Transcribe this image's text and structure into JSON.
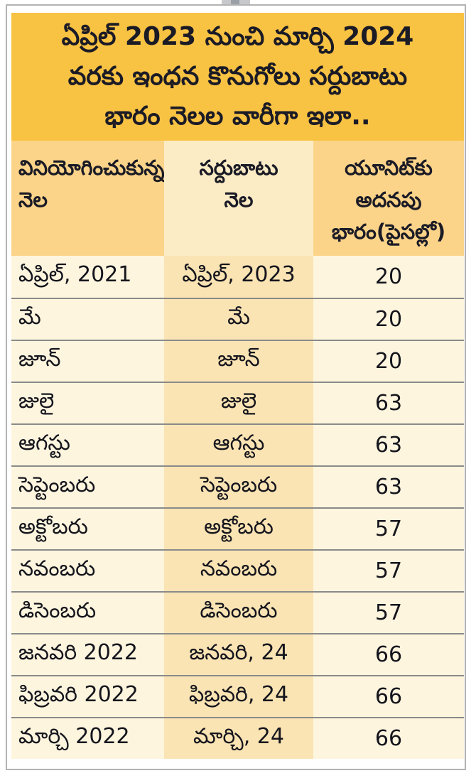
{
  "title": {
    "lines": [
      "ఏప్రిల్ 2023 నుంచి మార్చి 2024",
      "వరకు ఇంధన కొనుగోలు సర్దుబాటు",
      "భారం నెలల వారీగా ఇలా.."
    ]
  },
  "table": {
    "headers": [
      {
        "lines": [
          "వినియోగించుకున్న",
          "నెల"
        ]
      },
      {
        "lines": [
          "సర్దుబాటు",
          "నెల"
        ]
      },
      {
        "lines": [
          "యూనిట్‌కు",
          "అదనపు",
          "భారం(పైసల్లో)"
        ]
      }
    ],
    "rows": [
      {
        "used_month": "ఏప్రిల్, 2021",
        "adjustment_month": "ఏప్రిల్, 2023",
        "extra_charge_paise": "20"
      },
      {
        "used_month": "మే",
        "adjustment_month": "మే",
        "extra_charge_paise": "20"
      },
      {
        "used_month": "జూన్",
        "adjustment_month": "జూన్",
        "extra_charge_paise": "20"
      },
      {
        "used_month": "జులై",
        "adjustment_month": "జులై",
        "extra_charge_paise": "63"
      },
      {
        "used_month": "ఆగస్టు",
        "adjustment_month": "ఆగస్టు",
        "extra_charge_paise": "63"
      },
      {
        "used_month": "సెప్టెంబరు",
        "adjustment_month": "సెప్టెంబరు",
        "extra_charge_paise": "63"
      },
      {
        "used_month": "అక్టోబరు",
        "adjustment_month": "అక్టోబరు",
        "extra_charge_paise": "57"
      },
      {
        "used_month": "నవంబరు",
        "adjustment_month": "నవంబరు",
        "extra_charge_paise": "57"
      },
      {
        "used_month": "డిసెంబరు",
        "adjustment_month": "డిసెంబరు",
        "extra_charge_paise": "57"
      },
      {
        "used_month": "జనవరి 2022",
        "adjustment_month": "జనవరి, 24",
        "extra_charge_paise": "66"
      },
      {
        "used_month": "ఫిబ్రవరి 2022",
        "adjustment_month": "ఫిబ్రవరి, 24",
        "extra_charge_paise": "66"
      },
      {
        "used_month": "మార్చి 2022",
        "adjustment_month": "మార్చి, 24",
        "extra_charge_paise": "66"
      }
    ]
  },
  "chart_data": {
    "type": "table",
    "title": "ఏప్రిల్ 2023 నుంచి మార్చి 2024 వరకు ఇంధన కొనుగోలు సర్దుబాటు భారం నెలల వారీగా ఇలా..",
    "columns": [
      "వినియోగించుకున్న నెల",
      "సర్దుబాటు నెల",
      "యూనిట్‌కు అదనపు భారం(పైసల్లో)"
    ],
    "rows": [
      [
        "ఏప్రిల్, 2021",
        "ఏప్రిల్, 2023",
        20
      ],
      [
        "మే",
        "మే",
        20
      ],
      [
        "జూన్",
        "జూన్",
        20
      ],
      [
        "జులై",
        "జులై",
        63
      ],
      [
        "ఆగస్టు",
        "ఆగస్టు",
        63
      ],
      [
        "సెప్టెంబరు",
        "సెప్టెంబరు",
        63
      ],
      [
        "అక్టోబరు",
        "అక్టోబరు",
        57
      ],
      [
        "నవంబరు",
        "నవంబరు",
        57
      ],
      [
        "డిసెంబరు",
        "డిసెంబరు",
        57
      ],
      [
        "జనవరి 2022",
        "జనవరి, 24",
        66
      ],
      [
        "ఫిబ్రవరి 2022",
        "ఫిబ్రవరి, 24",
        66
      ],
      [
        "మార్చి 2022",
        "మార్చి, 24",
        66
      ]
    ],
    "extra_charge_paise_values": [
      20,
      20,
      20,
      63,
      63,
      63,
      57,
      57,
      57,
      66,
      66,
      66
    ]
  },
  "colors": {
    "title_background": "#f8c243",
    "header_peach": "#fbd489",
    "header_cream": "#fcecc6",
    "body_cream": "#fdf5de",
    "body_peach": "#fae4b4",
    "separator_gray": "#8a8a8a",
    "frame_border": "#b3b3b3",
    "text": "#15151d"
  }
}
